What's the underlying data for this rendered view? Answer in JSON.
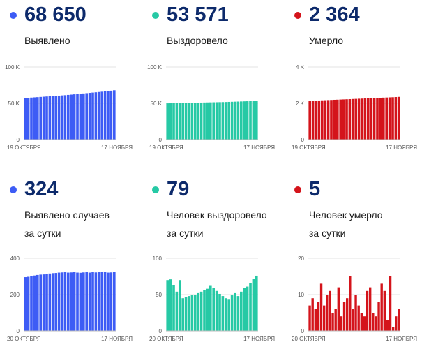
{
  "panels": [
    {
      "color": "#3d5cf5",
      "value": "68 650",
      "label": [
        "Выявлено"
      ],
      "chart_data": {
        "type": "bar",
        "ylim": [
          0,
          100000
        ],
        "yticks": [
          {
            "v": 0,
            "t": "0"
          },
          {
            "v": 50000,
            "t": "50 K"
          },
          {
            "v": 100000,
            "t": "100 K"
          }
        ],
        "xlabels": [
          "19 ОКТЯБРЯ",
          "17 НОЯБРЯ"
        ],
        "values": [
          57300,
          57600,
          57900,
          58200,
          58500,
          58800,
          59100,
          59400,
          59700,
          60000,
          60300,
          60600,
          60900,
          61200,
          61600,
          62000,
          62400,
          62800,
          63200,
          63600,
          64000,
          64400,
          64800,
          65200,
          65600,
          66000,
          66400,
          66900,
          67400,
          68000
        ]
      }
    },
    {
      "color": "#26c9a5",
      "value": "53 571",
      "label": [
        "Выздоровело"
      ],
      "chart_data": {
        "type": "bar",
        "ylim": [
          0,
          100000
        ],
        "yticks": [
          {
            "v": 0,
            "t": "0"
          },
          {
            "v": 50000,
            "t": "50 K"
          },
          {
            "v": 100000,
            "t": "100 K"
          }
        ],
        "xlabels": [
          "19 ОКТЯБРЯ",
          "17 НОЯБРЯ"
        ],
        "values": [
          49900,
          50000,
          50100,
          50200,
          50300,
          50400,
          50500,
          50600,
          50700,
          50800,
          50900,
          51000,
          51100,
          51200,
          51300,
          51400,
          51500,
          51600,
          51700,
          51800,
          51950,
          52100,
          52250,
          52400,
          52550,
          52700,
          52850,
          53000,
          53200,
          53400
        ]
      }
    },
    {
      "color": "#d4141b",
      "value": "2 364",
      "label": [
        "Умерло"
      ],
      "chart_data": {
        "type": "bar",
        "ylim": [
          0,
          4000
        ],
        "yticks": [
          {
            "v": 0,
            "t": "0"
          },
          {
            "v": 2000,
            "t": "2 K"
          },
          {
            "v": 4000,
            "t": "4 K"
          }
        ],
        "xlabels": [
          "19 ОКТЯБРЯ",
          "17 НОЯБРЯ"
        ],
        "values": [
          2130,
          2140,
          2148,
          2155,
          2163,
          2170,
          2178,
          2185,
          2193,
          2200,
          2208,
          2215,
          2223,
          2230,
          2238,
          2245,
          2253,
          2260,
          2268,
          2275,
          2283,
          2290,
          2298,
          2305,
          2313,
          2320,
          2328,
          2335,
          2345,
          2355
        ]
      }
    },
    {
      "color": "#3d5cf5",
      "value": "324",
      "label": [
        "Выявлено случаев",
        "за сутки"
      ],
      "chart_data": {
        "type": "bar",
        "ylim": [
          0,
          400
        ],
        "yticks": [
          {
            "v": 0,
            "t": "0"
          },
          {
            "v": 200,
            "t": "200"
          },
          {
            "v": 400,
            "t": "400"
          }
        ],
        "xlabels": [
          "20 ОКТЯБРЯ",
          "17 НОЯБРЯ"
        ],
        "values": [
          296,
          298,
          301,
          305,
          308,
          310,
          311,
          313,
          316,
          318,
          319,
          321,
          322,
          323,
          321,
          322,
          324,
          321,
          320,
          322,
          323,
          321,
          325,
          322,
          323,
          326,
          325,
          321,
          322,
          324
        ]
      }
    },
    {
      "color": "#26c9a5",
      "value": "79",
      "label": [
        "Человек выздоровело",
        "за сутки"
      ],
      "chart_data": {
        "type": "bar",
        "ylim": [
          0,
          100
        ],
        "yticks": [
          {
            "v": 0,
            "t": "0"
          },
          {
            "v": 50,
            "t": "50"
          },
          {
            "v": 100,
            "t": "100"
          }
        ],
        "xlabels": [
          "20 ОКТЯБРЯ",
          "17 НОЯБРЯ"
        ],
        "values": [
          70,
          71,
          63,
          54,
          70,
          45,
          47,
          48,
          49,
          50,
          52,
          54,
          56,
          58,
          62,
          59,
          55,
          51,
          48,
          45,
          43,
          49,
          52,
          48,
          54,
          59,
          61,
          66,
          72,
          76
        ]
      }
    },
    {
      "color": "#d4141b",
      "value": "5",
      "label": [
        "Человек умерло",
        "за сутки"
      ],
      "chart_data": {
        "type": "bar",
        "ylim": [
          0,
          20
        ],
        "yticks": [
          {
            "v": 0,
            "t": "0"
          },
          {
            "v": 10,
            "t": "10"
          },
          {
            "v": 20,
            "t": "20"
          }
        ],
        "xlabels": [
          "20 ОКТЯБРЯ",
          "17 НОЯБРЯ"
        ],
        "values": [
          7,
          9,
          6,
          8,
          13,
          7,
          10,
          11,
          5,
          6,
          12,
          4,
          8,
          9,
          15,
          6,
          10,
          7,
          5,
          4,
          11,
          12,
          5,
          4,
          8,
          13,
          11,
          3,
          15,
          1,
          4,
          6
        ]
      }
    }
  ]
}
